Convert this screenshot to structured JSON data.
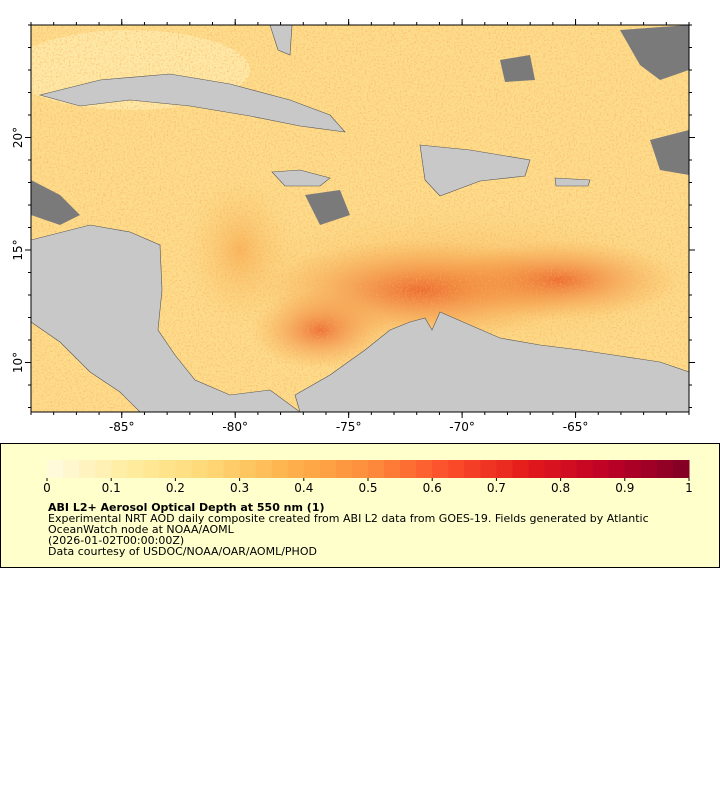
{
  "map": {
    "lon_range": [
      -89,
      -60
    ],
    "lat_range": [
      7.8,
      25
    ],
    "lon_ticks": [
      {
        "value": -85,
        "label": "-85°"
      },
      {
        "value": -80,
        "label": "-80°"
      },
      {
        "value": -75,
        "label": "-75°"
      },
      {
        "value": -70,
        "label": "-70°"
      },
      {
        "value": -65,
        "label": "-65°"
      }
    ],
    "lat_ticks": [
      {
        "value": 10,
        "label": "10°"
      },
      {
        "value": 15,
        "label": "15°"
      },
      {
        "value": 20,
        "label": "20°"
      }
    ]
  },
  "colorbar": {
    "range": [
      0,
      1
    ],
    "ticks": [
      0,
      0.1,
      0.2,
      0.3,
      0.4,
      0.5,
      0.6,
      0.7,
      0.8,
      0.9,
      1
    ],
    "colormap": [
      "#fffbe0",
      "#ffeda0",
      "#fed976",
      "#feb24c",
      "#fd8d3c",
      "#fc4e2a",
      "#e31a1c",
      "#bd0026",
      "#800026"
    ],
    "title": "ABI L2+ Aerosol Optical Depth at 550 nm (1)",
    "lines": [
      "Experimental NRT AOD daily composite created from ABI L2 data from GOES-19. Fields generated by Atlantic",
      "OceanWatch node at NOAA/AOML",
      "(2026-01-02T00:00:00Z)",
      "Data courtesy of USDOC/NOAA/OAR/AOML/PHOD"
    ]
  }
}
